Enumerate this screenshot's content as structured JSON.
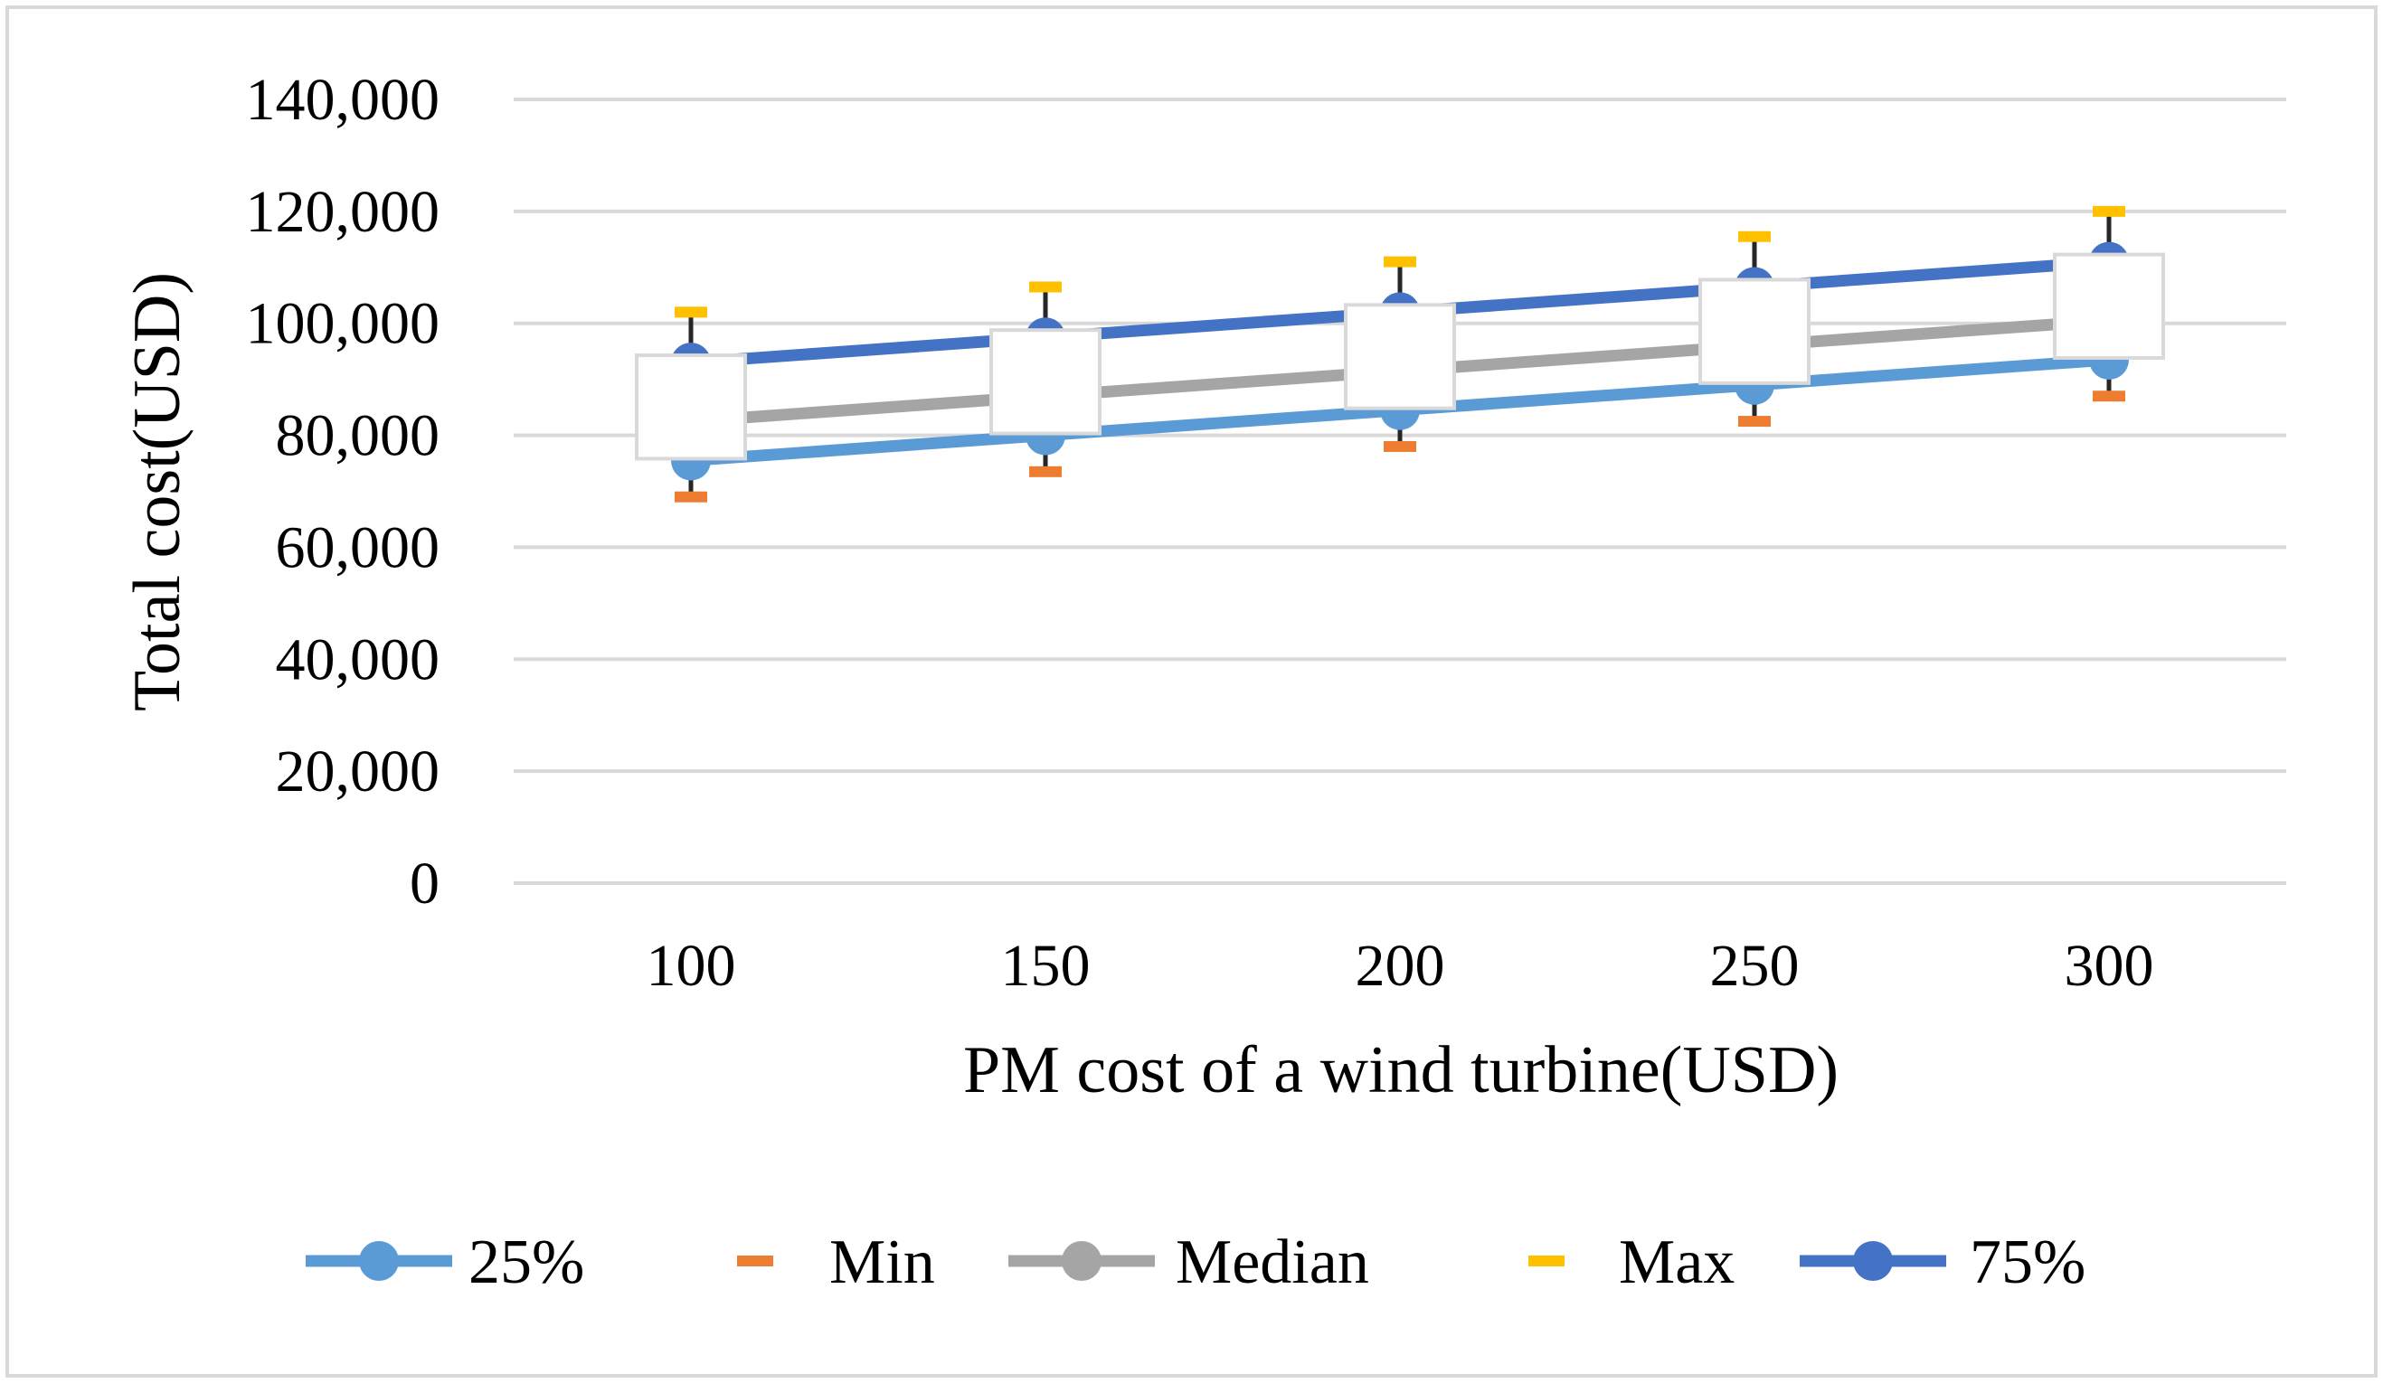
{
  "chart_data": {
    "type": "line",
    "title": "",
    "xlabel": "PM cost of a wind turbine(USD)",
    "ylabel": "Total cost(USD)",
    "categories": [
      "100",
      "150",
      "200",
      "250",
      "300"
    ],
    "ylim": [
      0,
      140000
    ],
    "yticks": [
      0,
      20000,
      40000,
      60000,
      80000,
      100000,
      120000,
      140000
    ],
    "ytick_labels": [
      "0",
      "20,000",
      "40,000",
      "60,000",
      "80,000",
      "100,000",
      "120,000",
      "140,000"
    ],
    "grid": true,
    "legend_position": "bottom",
    "series": [
      {
        "name": "25%",
        "values": [
          75500,
          80000,
          84500,
          89000,
          93500
        ],
        "color": "#5b9bd5",
        "style": "line-marker"
      },
      {
        "name": "Min",
        "values": [
          69000,
          73500,
          78000,
          82500,
          87000
        ],
        "color": "#ed7d31",
        "style": "dash"
      },
      {
        "name": "Median",
        "values": [
          82500,
          87000,
          91500,
          96000,
          100500
        ],
        "color": "#a5a5a5",
        "style": "line-marker"
      },
      {
        "name": "Max",
        "values": [
          102000,
          106500,
          111000,
          115500,
          120000
        ],
        "color": "#ffc000",
        "style": "dash"
      },
      {
        "name": "75%",
        "values": [
          93000,
          97500,
          102000,
          106500,
          111000
        ],
        "color": "#4472c4",
        "style": "line-marker"
      }
    ]
  }
}
